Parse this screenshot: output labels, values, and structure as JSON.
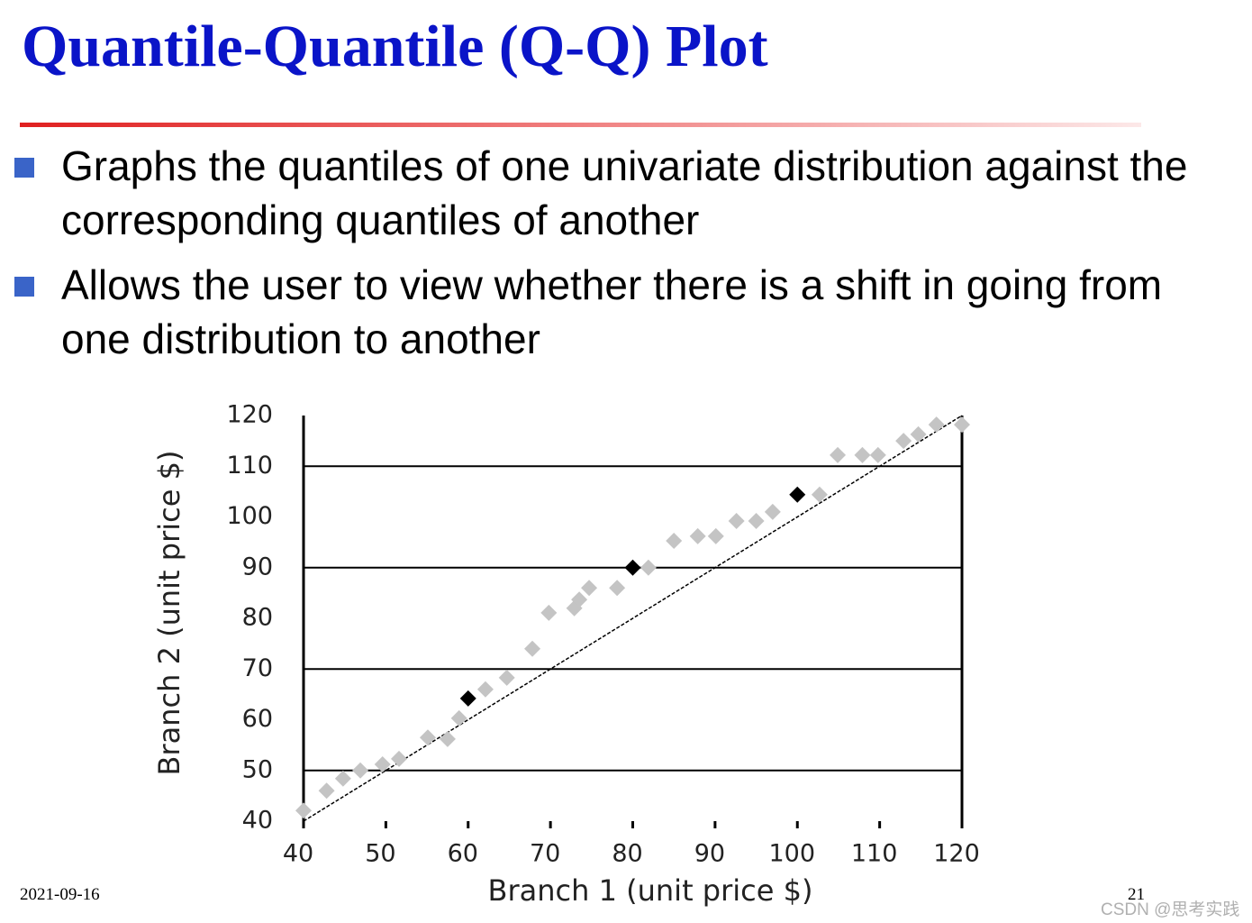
{
  "title": "Quantile-Quantile (Q-Q) Plot",
  "bullets": [
    "Graphs the quantiles of one univariate distribution against the corresponding quantiles of another",
    "Allows the user to view whether there is a shift in going from one distribution to another"
  ],
  "footer": {
    "date": "2021-09-16",
    "page": "21",
    "watermark": "CSDN @思考实践"
  },
  "chart_data": {
    "type": "scatter",
    "xlabel": "Branch 1 (unit price $)",
    "ylabel": "Branch 2 (unit price $)",
    "xlim": [
      40,
      120
    ],
    "ylim": [
      40,
      120
    ],
    "xticks": [
      40,
      50,
      60,
      70,
      80,
      90,
      100,
      110,
      120
    ],
    "yticks": [
      40,
      50,
      60,
      70,
      80,
      90,
      100,
      110,
      120
    ],
    "gridlines": [
      50,
      70,
      90,
      110
    ],
    "series": [
      {
        "color": "#c4c4c4",
        "x": [
          40,
          42.8,
          44.8,
          46.9,
          49.6,
          51.6,
          55.1,
          57.5,
          58.9,
          62.1,
          64.7,
          67.8,
          69.8,
          72.9,
          73.5,
          74.7,
          78.1,
          81.9,
          85,
          87.9,
          90.1,
          92.6,
          95,
          97,
          102.7,
          104.9,
          107.9,
          109.8,
          112.9,
          114.7,
          116.9,
          120
        ],
        "y": [
          42.1,
          46,
          48.4,
          50,
          51.2,
          52.3,
          56.5,
          56.2,
          60.3,
          66,
          68.3,
          74,
          81.1,
          82,
          83.7,
          86,
          86,
          90,
          95.3,
          96.2,
          96.2,
          99.2,
          99.2,
          101,
          104.4,
          112.2,
          112.2,
          112.2,
          115,
          116.3,
          118.2,
          118.2
        ]
      },
      {
        "color": "#000000",
        "x": [
          60,
          80,
          100
        ],
        "y": [
          64.2,
          90,
          104.4
        ]
      }
    ],
    "reference_line": {
      "color": "#000000",
      "x": [
        40,
        120
      ],
      "y": [
        40,
        120
      ]
    }
  }
}
